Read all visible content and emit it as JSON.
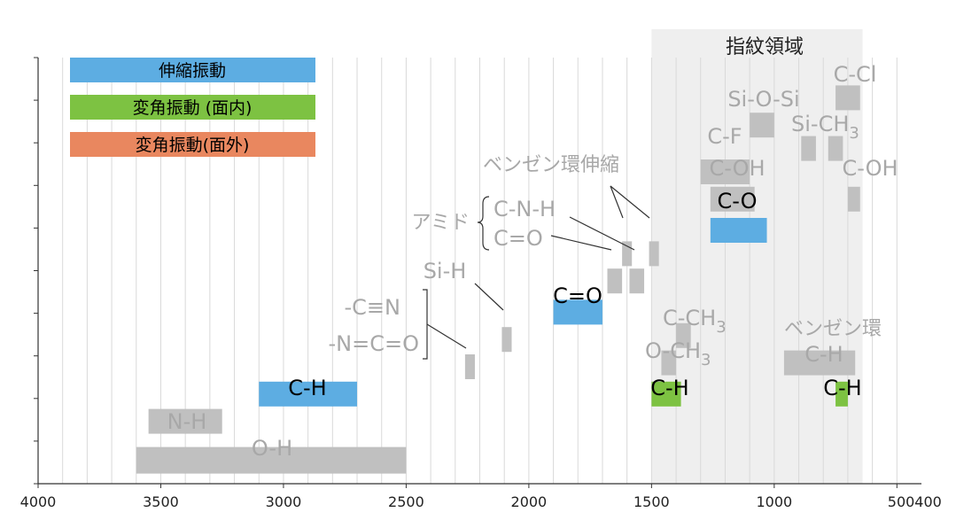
{
  "chart_data": {
    "type": "bar",
    "x_ticks": [
      "4000",
      "3500",
      "3000",
      "2500",
      "2000",
      "1500",
      "1000",
      "500400"
    ],
    "xlim": [
      4000,
      400
    ],
    "grid": true,
    "legend": [
      {
        "label": "伸縮振動",
        "color": "#5DADE2",
        "text_color": "#000000"
      },
      {
        "label": "変角振動 (面内)",
        "color": "#7DC242",
        "text_color": "#000000"
      },
      {
        "label": "変角振動(面外)",
        "color": "#E9875F",
        "text_color": "#000000"
      }
    ],
    "fingerprint_region": {
      "label": "指紋領域",
      "from": 1500,
      "to": 640
    },
    "colors": {
      "stretch": "#5DADE2",
      "inplane": "#7DC242",
      "outofplane": "#E9875F",
      "gray": "#C0C0C0",
      "gray_text": "#A8A8A8",
      "region": "#EFEFEF"
    },
    "bands": [
      {
        "id": "oh-broad",
        "from": 3600,
        "to": 2500,
        "level": 0.6,
        "kind": "gray"
      },
      {
        "id": "nh",
        "from": 3550,
        "to": 3250,
        "level": 1.6,
        "kind": "gray"
      },
      {
        "id": "ch-stretch",
        "from": 3100,
        "to": 2700,
        "level": 2.3,
        "kind": "stretch"
      },
      {
        "id": "cn-triple",
        "from": 2260,
        "to": 2220,
        "level": 3.0,
        "kind": "gray"
      },
      {
        "id": "nco",
        "from": 2110,
        "to": 2070,
        "level": 3.7,
        "kind": "gray"
      },
      {
        "id": "co-stretch",
        "from": 1900,
        "to": 1700,
        "level": 4.4,
        "kind": "stretch"
      },
      {
        "id": "amide-co",
        "from": 1680,
        "to": 1620,
        "level": 5.2,
        "kind": "gray"
      },
      {
        "id": "amide-cnh",
        "from": 1590,
        "to": 1530,
        "level": 5.2,
        "kind": "gray"
      },
      {
        "id": "benz1",
        "from": 1620,
        "to": 1580,
        "level": 5.9,
        "kind": "gray"
      },
      {
        "id": "benz2",
        "from": 1510,
        "to": 1470,
        "level": 5.9,
        "kind": "gray"
      },
      {
        "id": "ch-bend1",
        "from": 1500,
        "to": 1380,
        "level": 2.3,
        "kind": "inplane"
      },
      {
        "id": "och3",
        "from": 1460,
        "to": 1400,
        "level": 3.1,
        "kind": "gray"
      },
      {
        "id": "cch3",
        "from": 1400,
        "to": 1340,
        "level": 3.8,
        "kind": "gray"
      },
      {
        "id": "benzring",
        "from": 960,
        "to": 670,
        "level": 3.1,
        "kind": "gray"
      },
      {
        "id": "ch-bend2",
        "from": 750,
        "to": 700,
        "level": 2.3,
        "kind": "inplane"
      },
      {
        "id": "co-single",
        "from": 1260,
        "to": 1030,
        "level": 6.5,
        "kind": "stretch"
      },
      {
        "id": "coh1",
        "from": 1260,
        "to": 1080,
        "level": 7.3,
        "kind": "gray"
      },
      {
        "id": "coh2",
        "from": 700,
        "to": 650,
        "level": 7.3,
        "kind": "gray"
      },
      {
        "id": "cf",
        "from": 1300,
        "to": 1100,
        "level": 8.0,
        "kind": "gray"
      },
      {
        "id": "sich3a",
        "from": 890,
        "to": 830,
        "level": 8.6,
        "kind": "gray"
      },
      {
        "id": "sich3b",
        "from": 780,
        "to": 720,
        "level": 8.6,
        "kind": "gray"
      },
      {
        "id": "siosi",
        "from": 1100,
        "to": 1000,
        "level": 9.2,
        "kind": "gray"
      },
      {
        "id": "ccl",
        "from": 750,
        "to": 650,
        "level": 9.9,
        "kind": "gray"
      }
    ],
    "annotations": {
      "oh": "O-H",
      "nh": "N-H",
      "ch": "C-H",
      "nco": "-N=C=O",
      "cn": "-C≡N",
      "sih": "Si-H",
      "amide": "アミド",
      "amide_co": "C=O",
      "amide_cnh": "C-N-H",
      "benzene_stretch": "ベンゼン環伸縮",
      "co_double": "C=O",
      "ch_bend1": "C-H",
      "och3_main": "O-CH",
      "och3_sub": "3",
      "cch3_main": "C-CH",
      "cch3_sub": "3",
      "benzene_ring": "ベンゼン環",
      "benzene_ch": "C-H",
      "ch_bend2": "C-H",
      "co_single": "C-O",
      "coh1": "C-OH",
      "coh2": "C-OH",
      "cf": "C-F",
      "sich3_main": "Si-CH",
      "sich3_sub": "3",
      "siosi": "Si-O-Si",
      "ccl": "C-Cl"
    }
  }
}
